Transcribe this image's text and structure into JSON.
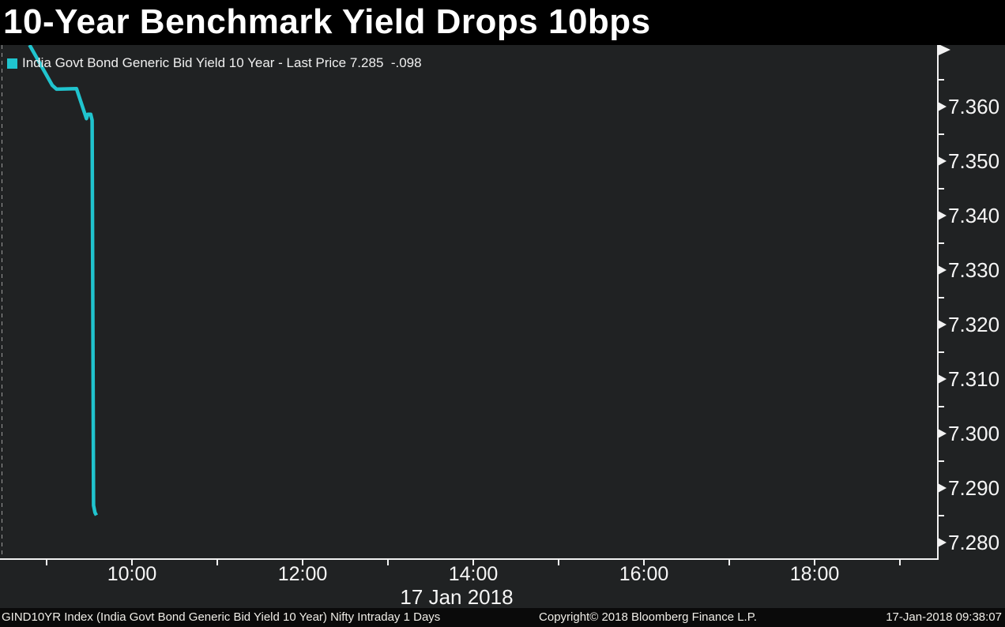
{
  "header": {
    "title": "10-Year Benchmark Yield Drops 10bps"
  },
  "legend": {
    "marker_color": "#20c4ce",
    "label": "India Govt Bond Generic Bid Yield 10 Year - Last Price 7.285  -.098"
  },
  "colors": {
    "background": "#202223",
    "title_bar": "#000000",
    "footer_bar": "#0a0a0a",
    "axis": "#f2f2f2",
    "line": "#20c4ce",
    "text": "#f5f5f5"
  },
  "chart_data": {
    "type": "line",
    "title": "10-Year Benchmark Yield Drops 10bps",
    "grid": false,
    "legend_position": "top-left",
    "series": [
      {
        "name": "India Govt Bond Generic Bid Yield 10 Year",
        "last_price": 7.285,
        "change": -0.098,
        "color": "#20c4ce",
        "points": [
          [
            "08:48",
            7.3713
          ],
          [
            "09:04",
            7.3639
          ],
          [
            "09:07",
            7.3632
          ],
          [
            "09:21",
            7.3633
          ],
          [
            "09:28",
            7.3578
          ],
          [
            "09:29",
            7.3586
          ],
          [
            "09:31",
            7.3586
          ],
          [
            "09:32",
            7.3575
          ],
          [
            "09:33",
            7.2868
          ],
          [
            "09:34",
            7.2855
          ],
          [
            "09:35",
            7.285
          ]
        ]
      }
    ],
    "x_axis": {
      "date_label": "17 Jan 2018",
      "ticks": [
        "09:00",
        "10:00",
        "11:00",
        "12:00",
        "13:00",
        "14:00",
        "15:00",
        "16:00",
        "17:00",
        "18:00",
        "19:00"
      ],
      "labels": [
        "10:00",
        "12:00",
        "14:00",
        "16:00",
        "18:00"
      ]
    },
    "y_axis": {
      "side": "right",
      "major": [
        {
          "value": 7.36,
          "label": "7.360"
        },
        {
          "value": 7.35,
          "label": "7.350"
        },
        {
          "value": 7.34,
          "label": "7.340"
        },
        {
          "value": 7.33,
          "label": "7.330"
        },
        {
          "value": 7.32,
          "label": "7.320"
        },
        {
          "value": 7.31,
          "label": "7.310"
        },
        {
          "value": 7.3,
          "label": "7.300"
        },
        {
          "value": 7.29,
          "label": "7.290"
        },
        {
          "value": 7.28,
          "label": "7.280"
        }
      ],
      "minor": [
        7.365,
        7.355,
        7.345,
        7.335,
        7.325,
        7.315,
        7.305,
        7.295,
        7.285
      ],
      "range": [
        7.277,
        7.371
      ]
    }
  },
  "footer": {
    "left": "GIND10YR Index (India Govt Bond Generic Bid Yield 10 Year) Nifty Intraday 1 Days",
    "center": "Copyright© 2018 Bloomberg Finance L.P.",
    "right": "17-Jan-2018 09:38:07"
  }
}
